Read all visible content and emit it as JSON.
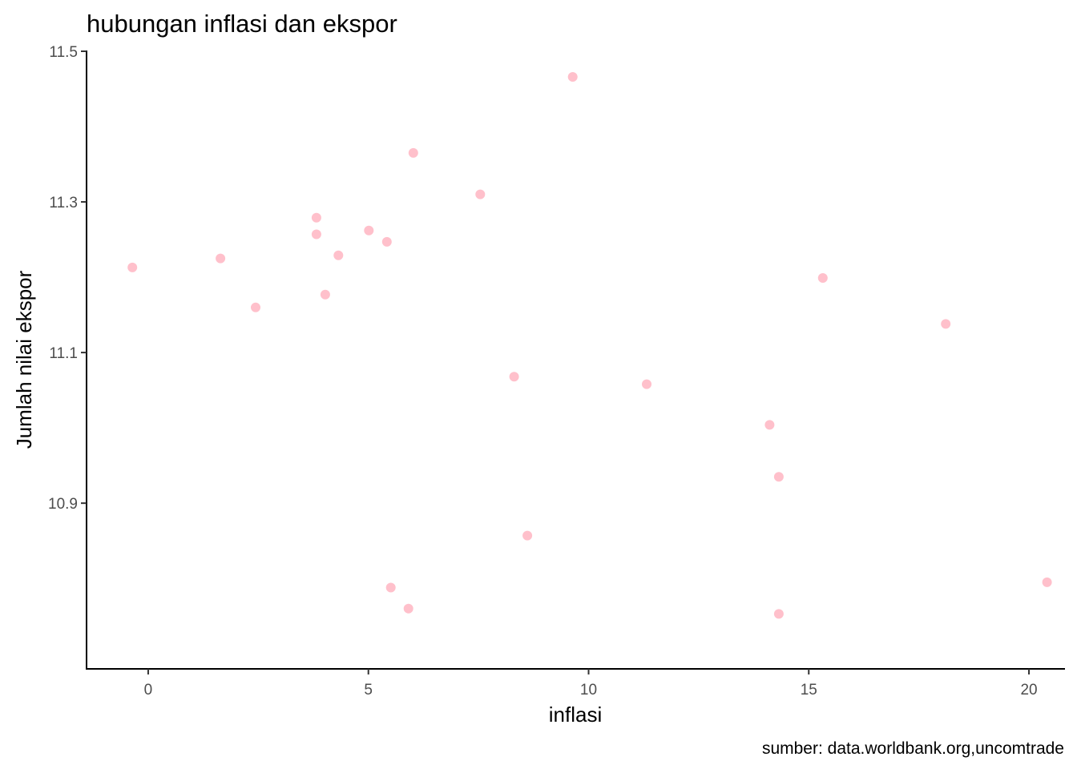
{
  "chart_data": {
    "type": "scatter",
    "title": "hubungan inflasi dan ekspor",
    "xlabel": "inflasi",
    "ylabel": "Jumlah nilai ekspor",
    "caption": "sumber: data.worldbank.org,uncomtrade",
    "xlim": [
      -1.4,
      20.8
    ],
    "ylim": [
      10.68,
      11.5
    ],
    "xticks": [
      0,
      5,
      10,
      15,
      20
    ],
    "xtick_labels": [
      "0",
      "5",
      "10",
      "15",
      "20"
    ],
    "yticks": [
      10.9,
      11.1,
      11.3,
      11.5
    ],
    "ytick_labels": [
      "10.9",
      "11.1",
      "11.3",
      "11.5"
    ],
    "grid": false,
    "point_color": "#FFC0CB",
    "points": [
      {
        "x": -0.36,
        "y": 11.213
      },
      {
        "x": 1.64,
        "y": 11.225
      },
      {
        "x": 2.44,
        "y": 11.16
      },
      {
        "x": 3.82,
        "y": 11.279
      },
      {
        "x": 3.82,
        "y": 11.257
      },
      {
        "x": 4.02,
        "y": 11.177
      },
      {
        "x": 4.32,
        "y": 11.229
      },
      {
        "x": 5.01,
        "y": 11.262
      },
      {
        "x": 5.42,
        "y": 11.247
      },
      {
        "x": 5.51,
        "y": 10.788
      },
      {
        "x": 5.91,
        "y": 10.76
      },
      {
        "x": 6.02,
        "y": 11.365
      },
      {
        "x": 7.54,
        "y": 11.31
      },
      {
        "x": 8.31,
        "y": 11.068
      },
      {
        "x": 8.61,
        "y": 10.857
      },
      {
        "x": 9.64,
        "y": 11.466
      },
      {
        "x": 11.32,
        "y": 11.058
      },
      {
        "x": 14.11,
        "y": 11.004
      },
      {
        "x": 14.32,
        "y": 10.935
      },
      {
        "x": 14.32,
        "y": 10.753
      },
      {
        "x": 15.32,
        "y": 11.199
      },
      {
        "x": 18.11,
        "y": 11.138
      },
      {
        "x": 20.41,
        "y": 10.795
      }
    ]
  }
}
